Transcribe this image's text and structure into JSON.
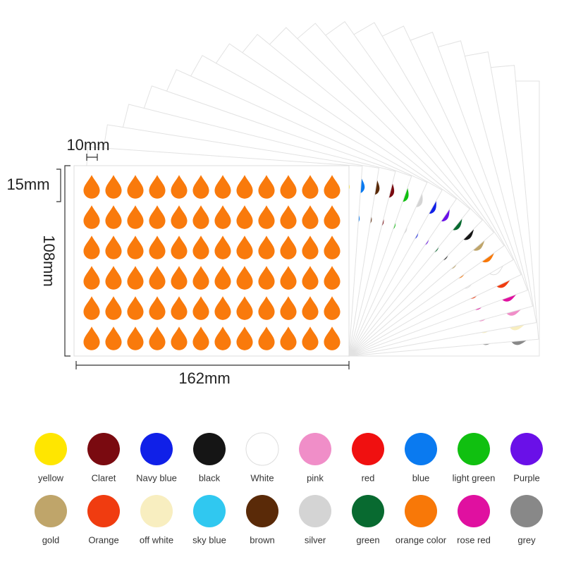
{
  "dimensions": {
    "drop_width": "10mm",
    "drop_height": "15mm",
    "sheet_height": "108mm",
    "sheet_width": "162mm"
  },
  "swatches": [
    {
      "label": "yellow",
      "color": "#ffe600"
    },
    {
      "label": "Claret",
      "color": "#7a0a10"
    },
    {
      "label": "Navy blue",
      "color": "#1020e8"
    },
    {
      "label": "black",
      "color": "#151515"
    },
    {
      "label": "White",
      "color": "#ffffff"
    },
    {
      "label": "pink",
      "color": "#f08ec8"
    },
    {
      "label": "red",
      "color": "#f01010"
    },
    {
      "label": "blue",
      "color": "#0a7af0"
    },
    {
      "label": "light green",
      "color": "#10c010"
    },
    {
      "label": "Purple",
      "color": "#6a10e8"
    },
    {
      "label": "gold",
      "color": "#bfa56a"
    },
    {
      "label": "Orange",
      "color": "#f03c10"
    },
    {
      "label": "off white",
      "color": "#f8eec0"
    },
    {
      "label": "sky blue",
      "color": "#30c8f0"
    },
    {
      "label": "brown",
      "color": "#5a2a08"
    },
    {
      "label": "silver",
      "color": "#d4d4d4"
    },
    {
      "label": "green",
      "color": "#086a30"
    },
    {
      "label": "orange color",
      "color": "#f87808"
    },
    {
      "label": "rose red",
      "color": "#e010a0"
    },
    {
      "label": "grey",
      "color": "#888888"
    }
  ]
}
